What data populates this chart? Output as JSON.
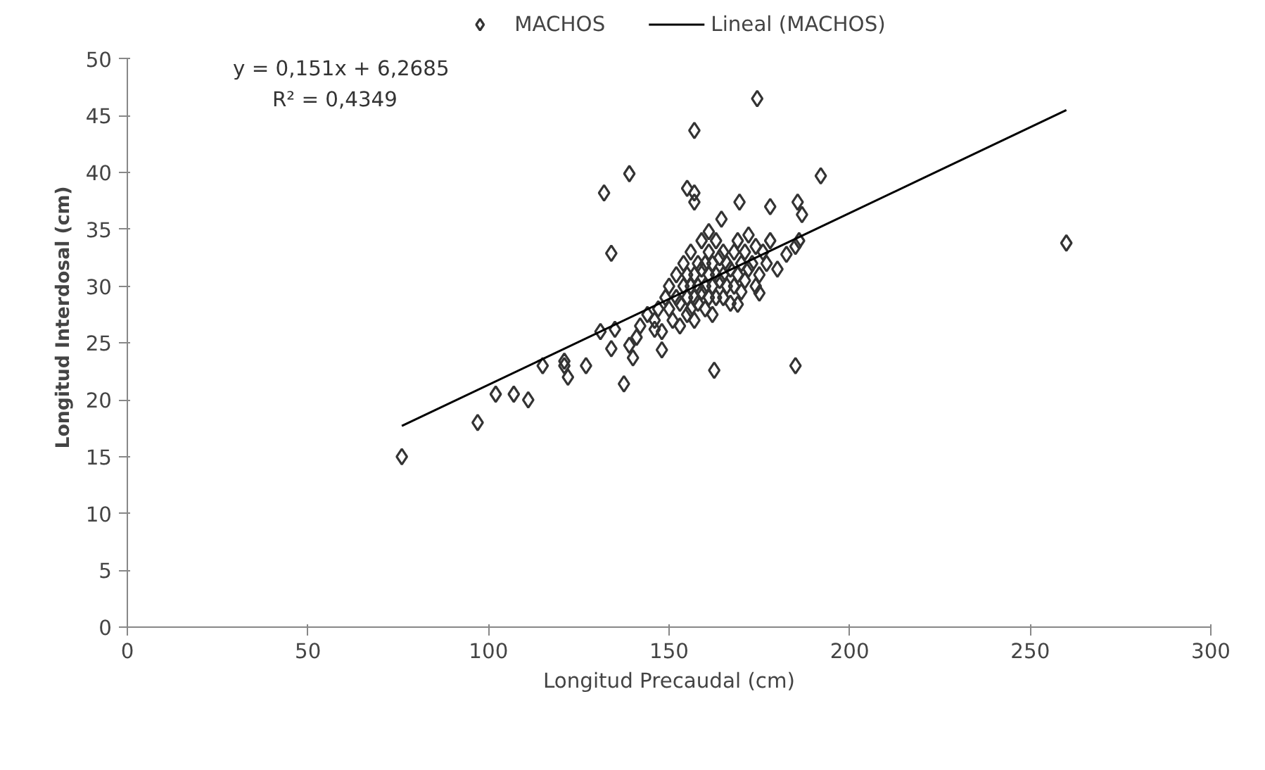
{
  "chart_data": {
    "type": "scatter",
    "xlabel": "Longitud Precaudal (cm)",
    "ylabel": "Longitud Interdosal (cm)",
    "xlim": [
      0,
      300
    ],
    "xticks": [
      0,
      50,
      100,
      150,
      200,
      250,
      300
    ],
    "ylim": [
      0,
      50
    ],
    "yticks": [
      0,
      5,
      10,
      15,
      20,
      25,
      30,
      35,
      40,
      45,
      50
    ],
    "grid": false,
    "legend": "top",
    "annotations": [
      "y = 0,151x + 6,2685",
      "R² = 0,4349"
    ],
    "series": [
      {
        "name": "MACHOS",
        "color": "#333333",
        "marker": "diamond",
        "x": [
          76,
          97,
          102,
          107,
          111,
          115,
          121,
          122,
          127,
          131,
          134,
          137.5,
          139,
          140,
          148,
          162.5,
          157,
          139,
          132,
          155,
          157,
          157,
          134,
          161,
          121,
          135,
          146,
          174.4,
          192,
          169.5,
          185.6,
          186.8,
          178,
          164.5,
          185,
          260,
          185,
          169,
          175,
          182.5,
          180,
          186,
          150,
          150,
          151,
          152,
          152,
          153,
          153,
          154,
          154,
          155,
          155,
          155,
          156,
          156,
          156,
          157,
          157,
          157,
          158,
          158,
          158,
          159,
          159,
          159,
          160,
          160,
          160,
          161,
          161,
          161,
          162,
          162,
          162,
          163,
          163,
          163,
          164,
          164,
          165,
          165,
          165,
          166,
          166,
          167,
          167,
          168,
          168,
          169,
          169,
          170,
          170,
          171,
          171,
          172,
          172,
          173,
          174,
          174,
          175,
          176,
          177,
          178,
          146,
          147,
          148,
          149,
          144,
          142,
          141
        ],
        "values": [
          15,
          18,
          20.5,
          20.5,
          20,
          23,
          23.4,
          22,
          23,
          26,
          24.5,
          21.4,
          24.8,
          23.7,
          24.4,
          22.6,
          43.7,
          39.9,
          38.2,
          38.6,
          38.2,
          37.4,
          32.9,
          34.8,
          23,
          26.2,
          26.2,
          46.5,
          39.7,
          37.4,
          37.4,
          36.3,
          37,
          35.9,
          33.5,
          33.8,
          23,
          28.4,
          29.4,
          32.8,
          31.5,
          34,
          28,
          30,
          27,
          29,
          31,
          26.5,
          28.5,
          30,
          32,
          27.5,
          29,
          31,
          28,
          30,
          33,
          29,
          31,
          27,
          30,
          32,
          28.5,
          29.5,
          31.5,
          34,
          30,
          28,
          32,
          31,
          29,
          33,
          30,
          27.5,
          32,
          31,
          29,
          34,
          30.5,
          32.5,
          31,
          29,
          33,
          30,
          32,
          31.5,
          28.5,
          30,
          33,
          31,
          34,
          32,
          29.5,
          33,
          30.5,
          31.5,
          34.5,
          32,
          30,
          33.5,
          31,
          33,
          32,
          34,
          27,
          28,
          26,
          29,
          27.5,
          26.5,
          25.5
        ]
      },
      {
        "name": "Lineal (MACHOS)",
        "type": "line",
        "color": "#000000",
        "line_style": "solid",
        "x": [
          76,
          260
        ],
        "values": [
          17.7,
          45.5
        ]
      }
    ]
  }
}
